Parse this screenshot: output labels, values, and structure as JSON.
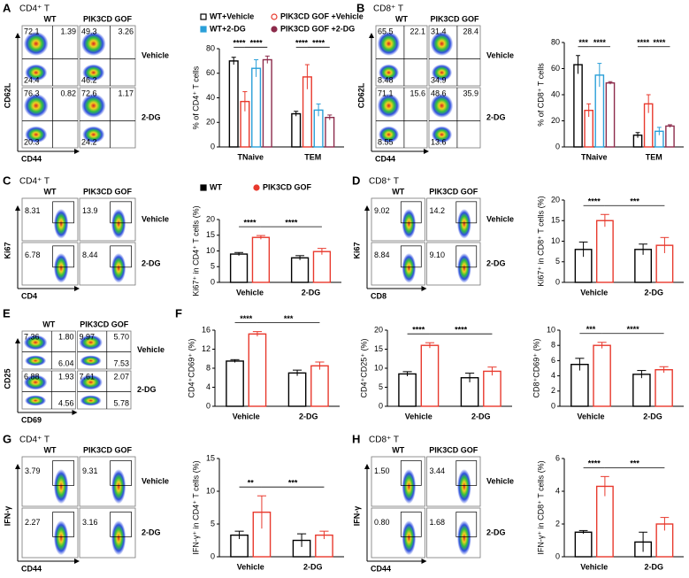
{
  "flow_panels": [
    {
      "panel": "A",
      "title": "CD4⁺ T",
      "columns": [
        "WT",
        "PIK3CD GOF"
      ],
      "rows": [
        "Vehicle",
        "2-DG"
      ],
      "x_label": "CD44",
      "y_label": "CD62L",
      "plots": [
        [
          "72.1",
          "1.39",
          "24.4"
        ],
        [
          "49.3",
          "3.26",
          "46.2"
        ],
        [
          "76.3",
          "0.82",
          "20.3"
        ],
        [
          "72.6",
          "1.17",
          "24.2"
        ]
      ]
    },
    {
      "panel": "B",
      "title": "CD8⁺ T",
      "columns": [
        "WT",
        "PIK3CD GOF"
      ],
      "rows": [
        "Vehicle",
        "2-DG"
      ],
      "x_label": "CD44",
      "y_label": "CD62L",
      "plots": [
        [
          "65.5",
          "22.1",
          "8.48"
        ],
        [
          "31.4",
          "28.4",
          "34.9"
        ],
        [
          "71.1",
          "15.6",
          "8.55"
        ],
        [
          "48.6",
          "35.9",
          "13.6"
        ]
      ]
    },
    {
      "panel": "C",
      "title": "CD4⁺ T",
      "columns": [
        "WT",
        "PIK3CD GOF"
      ],
      "rows": [
        "Vehicle",
        "2-DG"
      ],
      "x_label": "CD4",
      "y_label": "Ki67",
      "plots": [
        [
          "8.31"
        ],
        [
          "13.9"
        ],
        [
          "6.78"
        ],
        [
          "8.44"
        ]
      ]
    },
    {
      "panel": "D",
      "title": "CD8⁺ T",
      "columns": [
        "WT",
        "PIK3CD GOF"
      ],
      "rows": [
        "Vehicle",
        "2-DG"
      ],
      "x_label": "CD8",
      "y_label": "Ki67",
      "plots": [
        [
          "9.02"
        ],
        [
          "14.2"
        ],
        [
          "8.84"
        ],
        [
          "9.10"
        ]
      ]
    },
    {
      "panel": "E",
      "columns": [
        "WT",
        "PIK3CD GOF"
      ],
      "rows": [
        "Vehicle",
        "2-DG"
      ],
      "x_label": "CD69",
      "y_label": "CD25",
      "plots": [
        [
          "7.36",
          "1.80",
          "6.04"
        ],
        [
          "9.97",
          "5.70",
          "7.53"
        ],
        [
          "6.88",
          "1.93",
          "4.56"
        ],
        [
          "7.61",
          "2.07",
          "5.78"
        ]
      ]
    },
    {
      "panel": "G",
      "title": "CD4⁺ T",
      "columns": [
        "WT",
        "PIK3CD GOF"
      ],
      "rows": [
        "Vehicle",
        "2-DG"
      ],
      "x_label": "CD44",
      "y_label": "IFN-γ",
      "plots": [
        [
          "3.79"
        ],
        [
          "9.31"
        ],
        [
          "2.27"
        ],
        [
          "3.16"
        ]
      ]
    },
    {
      "panel": "H",
      "title": "CD8⁺ T",
      "columns": [
        "WT",
        "PIK3CD GOF"
      ],
      "rows": [
        "Vehicle",
        "2-DG"
      ],
      "x_label": "CD44",
      "y_label": "IFN-γ",
      "plots": [
        [
          "1.50"
        ],
        [
          "3.44"
        ],
        [
          "0.80"
        ],
        [
          "1.68"
        ]
      ]
    }
  ],
  "chart_data": [
    {
      "type": "bar",
      "y_label": "% of CD4⁺ T cells",
      "categories": [
        "TNaive",
        "TEM"
      ],
      "ylim": [
        0,
        80
      ],
      "yticks": [
        0,
        20,
        40,
        60,
        80
      ],
      "legend": "top",
      "series": [
        {
          "name": "WT+Vehicle",
          "color": "#000000",
          "marker": "square",
          "filled": false,
          "values": [
            70,
            27
          ],
          "errors": [
            3,
            2
          ]
        },
        {
          "name": "PIK3CD GOF +Vehicle",
          "color": "#e8392d",
          "marker": "circle",
          "filled": false,
          "values": [
            37,
            57
          ],
          "errors": [
            8,
            10
          ]
        },
        {
          "name": "WT+2-DG",
          "color": "#2a9fd8",
          "marker": "square",
          "filled": true,
          "values": [
            64,
            30
          ],
          "errors": [
            7,
            5
          ]
        },
        {
          "name": "PIK3CD GOF +2-DG",
          "color": "#8c2b4b",
          "marker": "circle",
          "filled": true,
          "values": [
            71,
            24
          ],
          "errors": [
            3,
            2
          ]
        }
      ],
      "annotations": [
        "****",
        "****",
        "****",
        "****"
      ]
    },
    {
      "type": "bar",
      "y_label": "% of CD8⁺ T cells",
      "categories": [
        "TNaive",
        "TEM"
      ],
      "ylim": [
        0,
        80
      ],
      "yticks": [
        0,
        20,
        40,
        60,
        80
      ],
      "series": [
        {
          "color": "#000000",
          "values": [
            63,
            9
          ],
          "errors": [
            7,
            2
          ]
        },
        {
          "color": "#e8392d",
          "values": [
            28,
            33
          ],
          "errors": [
            5,
            7
          ]
        },
        {
          "color": "#2a9fd8",
          "values": [
            55,
            12
          ],
          "errors": [
            9,
            3
          ]
        },
        {
          "color": "#8c2b4b",
          "values": [
            49,
            16
          ],
          "errors": [
            1,
            1
          ]
        }
      ],
      "annotations": [
        "***",
        "****",
        "****",
        "****"
      ]
    },
    {
      "type": "bar",
      "y_label": "Ki67⁺ in CD4⁺ T cells (%)",
      "categories": [
        "Vehicle",
        "2-DG"
      ],
      "ylim": [
        0,
        20
      ],
      "yticks": [
        0,
        5,
        10,
        15,
        20
      ],
      "legend": "top",
      "series": [
        {
          "name": "WT",
          "color": "#000000",
          "marker": "square",
          "filled": true,
          "values": [
            9,
            7.8
          ],
          "errors": [
            0.5,
            0.7
          ]
        },
        {
          "name": "PIK3CD GOF",
          "color": "#e8392d",
          "marker": "circle",
          "filled": true,
          "values": [
            14.3,
            9.8
          ],
          "errors": [
            0.6,
            1
          ]
        }
      ],
      "annotations": [
        "****",
        "****"
      ]
    },
    {
      "type": "bar",
      "y_label": "Ki67⁺ in CD8⁺ T cells (%)",
      "categories": [
        "Vehicle",
        "2-DG"
      ],
      "ylim": [
        0,
        20
      ],
      "yticks": [
        0,
        5,
        10,
        15,
        20
      ],
      "series": [
        {
          "color": "#000000",
          "values": [
            8,
            8
          ],
          "errors": [
            1.8,
            1.3
          ]
        },
        {
          "color": "#e8392d",
          "values": [
            15,
            9
          ],
          "errors": [
            1.5,
            1.9
          ]
        }
      ],
      "annotations": [
        "****",
        "***"
      ]
    },
    {
      "type": "bar",
      "panel": "F",
      "y_label": "CD4⁺CD69⁺ (%)",
      "categories": [
        "Vehicle",
        "2-DG"
      ],
      "ylim": [
        0,
        16
      ],
      "yticks": [
        0,
        4,
        8,
        12,
        16
      ],
      "series": [
        {
          "color": "#000000",
          "values": [
            9.5,
            7
          ],
          "errors": [
            0.3,
            0.6
          ]
        },
        {
          "color": "#e8392d",
          "values": [
            15.2,
            8.5
          ],
          "errors": [
            0.5,
            0.8
          ]
        }
      ],
      "annotations": [
        "****",
        "***"
      ]
    },
    {
      "type": "bar",
      "y_label": "CD4⁺CD25⁺ (%)",
      "categories": [
        "Vehicle",
        "2-DG"
      ],
      "ylim": [
        0,
        20
      ],
      "yticks": [
        0,
        5,
        10,
        15,
        20
      ],
      "series": [
        {
          "color": "#000000",
          "values": [
            8.5,
            7.5
          ],
          "errors": [
            0.6,
            1.2
          ]
        },
        {
          "color": "#e8392d",
          "values": [
            16,
            9.2
          ],
          "errors": [
            0.7,
            1.1
          ]
        }
      ],
      "annotations": [
        "****",
        "****"
      ]
    },
    {
      "type": "bar",
      "y_label": "CD8⁺CD69⁺ (%)",
      "categories": [
        "Vehicle",
        "2-DG"
      ],
      "ylim": [
        0,
        10
      ],
      "yticks": [
        0,
        2,
        4,
        6,
        8,
        10
      ],
      "series": [
        {
          "color": "#000000",
          "values": [
            5.5,
            4.2
          ],
          "errors": [
            0.8,
            0.5
          ]
        },
        {
          "color": "#e8392d",
          "values": [
            8,
            4.8
          ],
          "errors": [
            0.4,
            0.4
          ]
        }
      ],
      "annotations": [
        "***",
        "****"
      ]
    },
    {
      "type": "bar",
      "y_label": "IFN-γ⁺ in CD4⁺ T cells (%)",
      "categories": [
        "Vehicle",
        "2-DG"
      ],
      "ylim": [
        0,
        15
      ],
      "yticks": [
        0,
        5,
        10,
        15
      ],
      "series": [
        {
          "color": "#000000",
          "values": [
            3.3,
            2.5
          ],
          "errors": [
            0.6,
            1
          ]
        },
        {
          "color": "#e8392d",
          "values": [
            6.8,
            3.3
          ],
          "errors": [
            2.5,
            0.6
          ]
        }
      ],
      "annotations": [
        "**",
        "***"
      ]
    },
    {
      "type": "bar",
      "y_label": "IFN-γ⁺ in CD8⁺ T cells (%)",
      "categories": [
        "Vehicle",
        "2-DG"
      ],
      "ylim": [
        0,
        6
      ],
      "yticks": [
        0,
        2,
        4,
        6
      ],
      "series": [
        {
          "color": "#000000",
          "values": [
            1.5,
            0.9
          ],
          "errors": [
            0.1,
            0.6
          ]
        },
        {
          "color": "#e8392d",
          "values": [
            4.3,
            2.0
          ],
          "errors": [
            0.6,
            0.4
          ]
        }
      ],
      "annotations": [
        "****",
        "***"
      ]
    }
  ]
}
